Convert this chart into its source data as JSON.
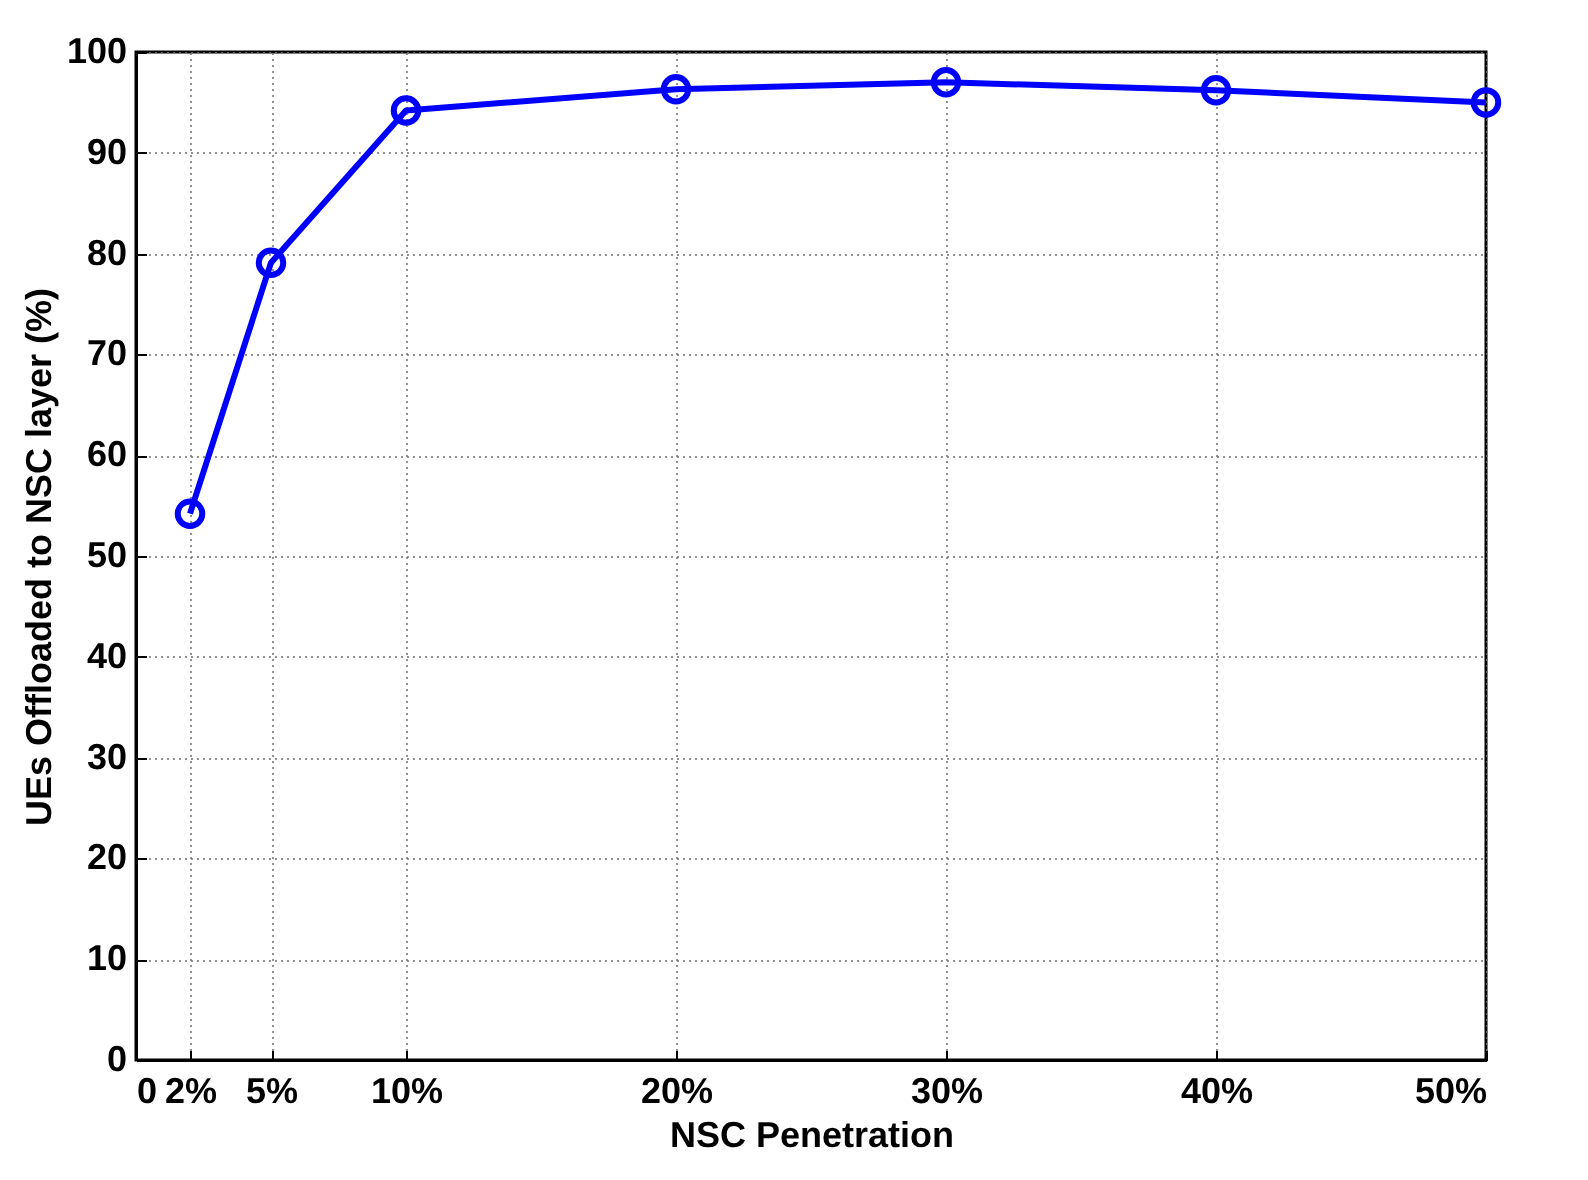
{
  "chart_data": {
    "type": "line",
    "xlabel": "NSC Penetration",
    "ylabel": "UEs Offloaded to NSC layer (%)",
    "x": [
      2,
      5,
      10,
      20,
      30,
      40,
      50
    ],
    "series": [
      {
        "color": "#0000ff",
        "values": [
          54.2,
          79.1,
          94.2,
          96.3,
          97.0,
          96.2,
          95.0
        ]
      }
    ],
    "xlim": [
      0,
      50
    ],
    "xticks": [
      0,
      {
        "value": 2,
        "label": "2%"
      },
      {
        "value": 5,
        "label": "5%"
      },
      {
        "value": 10,
        "label": "10%"
      },
      {
        "value": 20,
        "label": "20%"
      },
      {
        "value": 30,
        "label": "30%"
      },
      {
        "value": 40,
        "label": "40%"
      },
      {
        "value": 50,
        "label": "50%"
      }
    ],
    "ylim": [
      0,
      100
    ],
    "yticks": [
      0,
      10,
      20,
      30,
      40,
      50,
      60,
      70,
      80,
      90,
      100
    ],
    "grid": true,
    "marker": "circle",
    "line_style": "solid"
  }
}
